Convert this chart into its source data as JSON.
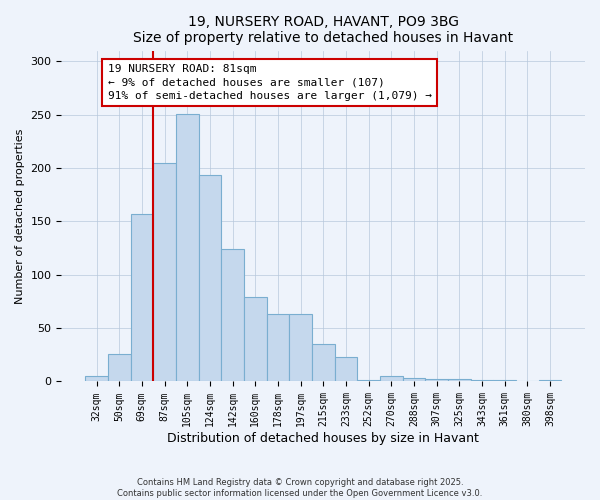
{
  "title": "19, NURSERY ROAD, HAVANT, PO9 3BG",
  "subtitle": "Size of property relative to detached houses in Havant",
  "xlabel": "Distribution of detached houses by size in Havant",
  "ylabel": "Number of detached properties",
  "bar_color": "#c5d8ed",
  "bar_edge_color": "#7aaed0",
  "background_color": "#eef3fb",
  "categories": [
    "32sqm",
    "50sqm",
    "69sqm",
    "87sqm",
    "105sqm",
    "124sqm",
    "142sqm",
    "160sqm",
    "178sqm",
    "197sqm",
    "215sqm",
    "233sqm",
    "252sqm",
    "270sqm",
    "288sqm",
    "307sqm",
    "325sqm",
    "343sqm",
    "361sqm",
    "380sqm",
    "398sqm"
  ],
  "values": [
    5,
    26,
    157,
    205,
    251,
    193,
    124,
    79,
    63,
    63,
    35,
    23,
    1,
    5,
    3,
    2,
    2,
    1,
    1,
    0,
    1
  ],
  "ylim": [
    0,
    310
  ],
  "yticks": [
    0,
    50,
    100,
    150,
    200,
    250,
    300
  ],
  "vline_x_index": 3,
  "vline_color": "#cc0000",
  "annotation_text": "19 NURSERY ROAD: 81sqm\n← 9% of detached houses are smaller (107)\n91% of semi-detached houses are larger (1,079) →",
  "annotation_box_color": "#ffffff",
  "annotation_box_edge": "#cc0000",
  "footer_line1": "Contains HM Land Registry data © Crown copyright and database right 2025.",
  "footer_line2": "Contains public sector information licensed under the Open Government Licence v3.0."
}
